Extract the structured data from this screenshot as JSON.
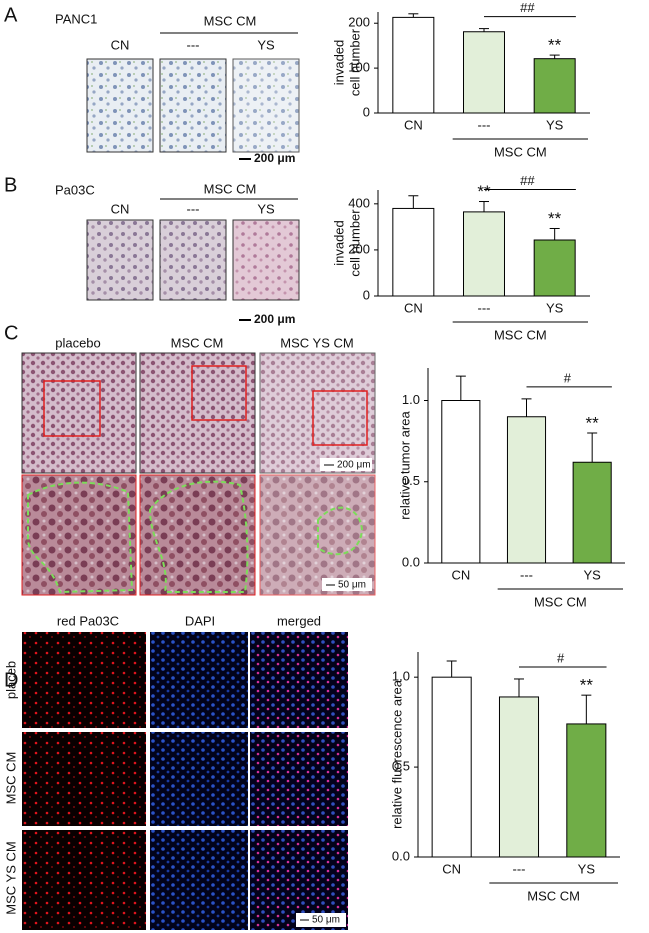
{
  "panels": [
    {
      "label": "A",
      "cell_line": "PANC1",
      "group": "MSC CM",
      "columns": [
        "CN",
        "---",
        "YS"
      ],
      "scale": "200 μm"
    },
    {
      "label": "B",
      "cell_line": "Pa03C",
      "group": "MSC CM",
      "columns": [
        "CN",
        "---",
        "YS"
      ],
      "scale": "200 μm"
    },
    {
      "label": "C",
      "columns": [
        "placebo",
        "MSC CM",
        "MSC YS CM"
      ],
      "scales": [
        "200 μm",
        "50 μm"
      ]
    },
    {
      "label": "D",
      "columns": [
        "red Pa03C",
        "DAPI",
        "merged"
      ],
      "rows": [
        "placeb",
        "MSC CM",
        "MSC YS CM"
      ],
      "scale": "50 μm"
    }
  ],
  "chart_data": [
    {
      "type": "bar",
      "ylabel": [
        "invaded",
        "cell number"
      ],
      "categories": [
        "CN",
        "---",
        "YS"
      ],
      "values": [
        213,
        181,
        121
      ],
      "errors": [
        8,
        7,
        8
      ],
      "colors": [
        "#ffffff",
        "#e2efd9",
        "#70ad47"
      ],
      "ylim": [
        0,
        225
      ],
      "yticks": [
        0,
        100,
        200
      ],
      "group": {
        "label": "MSC CM",
        "span": [
          1,
          2
        ]
      },
      "stars": [
        {
          "category": 2,
          "text": "**"
        }
      ],
      "bracket": {
        "text": "##",
        "span": [
          1,
          2
        ]
      }
    },
    {
      "type": "bar",
      "ylabel": [
        "invaded",
        "cell number"
      ],
      "categories": [
        "CN",
        "---",
        "YS"
      ],
      "values": [
        380,
        365,
        243
      ],
      "errors": [
        55,
        45,
        50
      ],
      "colors": [
        "#ffffff",
        "#e2efd9",
        "#70ad47"
      ],
      "ylim": [
        0,
        460
      ],
      "yticks": [
        0,
        200,
        400
      ],
      "group": {
        "label": "MSC CM",
        "span": [
          1,
          2
        ]
      },
      "stars": [
        {
          "category": 1,
          "text": "**"
        },
        {
          "category": 2,
          "text": "**"
        }
      ],
      "bracket": {
        "text": "##",
        "span": [
          1,
          2
        ]
      }
    },
    {
      "type": "bar",
      "ylabel": "relative tumor area",
      "categories": [
        "CN",
        "---",
        "YS"
      ],
      "values": [
        1.0,
        0.9,
        0.62
      ],
      "errors": [
        0.15,
        0.11,
        0.18
      ],
      "colors": [
        "#ffffff",
        "#e2efd9",
        "#70ad47"
      ],
      "ylim": [
        0,
        1.2
      ],
      "yticks": [
        {
          "value": 0,
          "label": "0.0"
        },
        {
          "value": 0.5,
          "label": "0.5"
        },
        {
          "value": 1,
          "label": "1.0"
        }
      ],
      "group": {
        "label": "MSC CM",
        "span": [
          1,
          2
        ]
      },
      "stars": [
        {
          "category": 2,
          "text": "**"
        }
      ],
      "bracket": {
        "text": "#",
        "span": [
          1,
          2
        ]
      }
    },
    {
      "type": "bar",
      "ylabel": "relative fluorescence area",
      "categories": [
        "CN",
        "---",
        "YS"
      ],
      "values": [
        1.0,
        0.89,
        0.74
      ],
      "errors": [
        0.09,
        0.1,
        0.16
      ],
      "colors": [
        "#ffffff",
        "#e2efd9",
        "#70ad47"
      ],
      "ylim": [
        0,
        1.14
      ],
      "yticks": [
        {
          "value": 0,
          "label": "0.0"
        },
        {
          "value": 0.5,
          "label": "0.5"
        },
        {
          "value": 1,
          "label": "1.0"
        }
      ],
      "group": {
        "label": "MSC CM",
        "span": [
          1,
          2
        ]
      },
      "stars": [
        {
          "category": 2,
          "text": "**"
        }
      ],
      "bracket": {
        "text": "#",
        "span": [
          1,
          2
        ]
      }
    }
  ]
}
